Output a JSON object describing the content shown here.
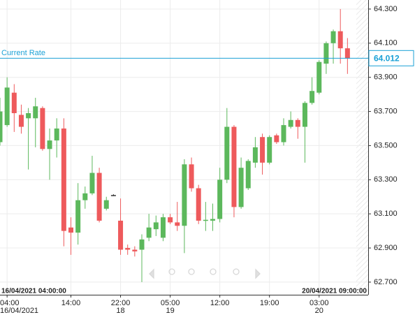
{
  "chart_data": {
    "type": "candlestick",
    "ylim": [
      62.626,
      64.353
    ],
    "yticks": [
      {
        "value": 62.7,
        "label": "62.700"
      },
      {
        "value": 62.9,
        "label": "62.900"
      },
      {
        "value": 63.1,
        "label": "63.100"
      },
      {
        "value": 63.3,
        "label": "63.300"
      },
      {
        "value": 63.5,
        "label": "63.500"
      },
      {
        "value": 63.7,
        "label": "63.700"
      },
      {
        "value": 63.9,
        "label": "63.900"
      },
      {
        "value": 64.1,
        "label": "64.100"
      },
      {
        "value": 64.3,
        "label": "64.300"
      }
    ],
    "grid": true,
    "categories": [
      null,
      "04:00",
      null,
      null,
      null,
      null,
      null,
      null,
      null,
      null,
      "14:00",
      null,
      null,
      null,
      null,
      null,
      null,
      "22:00",
      null,
      null,
      null,
      null,
      null,
      null,
      "05:00",
      null,
      null,
      null,
      null,
      null,
      null,
      "12:00",
      null,
      null,
      null,
      null,
      null,
      null,
      "19:00",
      null,
      null,
      null,
      null,
      null,
      null,
      "03:00",
      null,
      null,
      null,
      null
    ],
    "dates": [
      null,
      "16/04/2021",
      null,
      null,
      null,
      null,
      null,
      null,
      null,
      null,
      null,
      null,
      null,
      null,
      null,
      null,
      null,
      "18",
      null,
      null,
      null,
      null,
      null,
      null,
      "19",
      null,
      null,
      null,
      null,
      null,
      null,
      null,
      null,
      null,
      null,
      null,
      null,
      null,
      null,
      null,
      null,
      null,
      null,
      null,
      null,
      "20",
      null,
      null,
      null,
      null
    ],
    "open": [
      63.52,
      63.62,
      63.81,
      63.68,
      63.66,
      63.66,
      63.72,
      63.48,
      63.53,
      63.6,
      63.02,
      62.99,
      63.18,
      63.22,
      63.34,
      63.13,
      63.21,
      63.06,
      62.9,
      62.89,
      62.89,
      62.96,
      63.01,
      62.96,
      63.08,
      63.05,
      63.03,
      63.39,
      63.25,
      63.06,
      63.06,
      63.07,
      63.3,
      63.61,
      63.14,
      63.25,
      63.4,
      63.55,
      63.4,
      63.56,
      63.52,
      63.61,
      63.65,
      63.61,
      63.75,
      63.81,
      63.98,
      64.1,
      64.17,
      64.07
    ],
    "high": [
      63.78,
      63.9,
      63.86,
      63.74,
      63.72,
      63.78,
      63.73,
      63.6,
      63.66,
      63.66,
      63.08,
      63.28,
      63.26,
      63.44,
      63.37,
      63.2,
      63.215,
      63.19,
      62.92,
      62.91,
      62.98,
      63.1,
      63.09,
      63.1,
      63.1,
      63.17,
      63.42,
      63.43,
      63.27,
      63.17,
      63.16,
      63.37,
      63.72,
      63.62,
      63.43,
      63.42,
      63.55,
      63.57,
      63.56,
      63.57,
      63.66,
      63.7,
      63.66,
      63.76,
      63.9,
      64.0,
      64.11,
      64.18,
      64.3,
      64.13
    ],
    "low": [
      63.5,
      63.61,
      63.58,
      63.57,
      63.36,
      63.49,
      63.47,
      63.3,
      63.43,
      62.91,
      62.86,
      62.92,
      63.13,
      63.21,
      63.05,
      63.12,
      63.205,
      62.86,
      62.86,
      62.85,
      62.7,
      62.94,
      62.97,
      62.94,
      63.04,
      63.0,
      62.87,
      63.23,
      63.04,
      63.0,
      63.0,
      63.05,
      63.28,
      63.08,
      63.13,
      63.24,
      63.37,
      63.33,
      63.39,
      63.51,
      63.5,
      63.6,
      63.54,
      63.4,
      63.74,
      63.8,
      63.92,
      63.98,
      63.98,
      63.92
    ],
    "close": [
      63.7,
      63.84,
      63.69,
      63.61,
      63.69,
      63.73,
      63.48,
      63.53,
      63.6,
      63.0,
      62.99,
      63.18,
      63.22,
      63.34,
      63.06,
      63.18,
      63.21,
      62.89,
      62.89,
      62.88,
      62.95,
      63.02,
      63.05,
      63.08,
      63.05,
      63.03,
      63.39,
      63.25,
      63.06,
      63.065,
      63.07,
      63.3,
      63.61,
      63.14,
      63.37,
      63.41,
      63.49,
      63.4,
      63.55,
      63.52,
      63.62,
      63.65,
      63.61,
      63.75,
      63.82,
      63.99,
      64.1,
      64.17,
      64.07,
      64.01
    ],
    "up_color": "#5cb85c",
    "down_color": "#ee5a5c",
    "flat_color": "#333333",
    "current_rate": {
      "label": "Current Rate",
      "value": 64.012,
      "color": "#1ba1d6"
    },
    "start_label": "16/04/2021 04:00:00",
    "end_label": "20/04/2021 09:00:00"
  }
}
